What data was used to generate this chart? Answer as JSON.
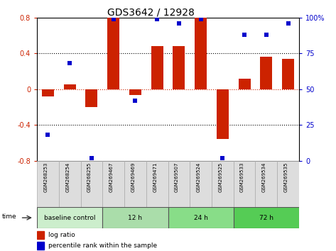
{
  "title": "GDS3642 / 12928",
  "samples": [
    "GSM268253",
    "GSM268254",
    "GSM268255",
    "GSM269467",
    "GSM269469",
    "GSM269471",
    "GSM269507",
    "GSM269524",
    "GSM269525",
    "GSM269533",
    "GSM269534",
    "GSM269535"
  ],
  "log_ratio": [
    -0.08,
    0.05,
    -0.2,
    0.8,
    -0.07,
    0.48,
    0.48,
    0.8,
    -0.56,
    0.12,
    0.36,
    0.34
  ],
  "percentile_rank": [
    18,
    68,
    2,
    99,
    42,
    99,
    96,
    99,
    2,
    88,
    88,
    96
  ],
  "groups": [
    {
      "label": "baseline control",
      "start": 0,
      "end": 3,
      "color": "#cceecc"
    },
    {
      "label": "12 h",
      "start": 3,
      "end": 6,
      "color": "#aaddaa"
    },
    {
      "label": "24 h",
      "start": 6,
      "end": 9,
      "color": "#88dd88"
    },
    {
      "label": "72 h",
      "start": 9,
      "end": 12,
      "color": "#55cc55"
    }
  ],
  "bar_color": "#cc2200",
  "dot_color": "#0000cc",
  "ylim": [
    -0.8,
    0.8
  ],
  "y2lim": [
    0,
    100
  ],
  "yticks": [
    -0.8,
    -0.4,
    0.0,
    0.4,
    0.8
  ],
  "y2ticks": [
    0,
    25,
    50,
    75,
    100
  ],
  "dotted_lines": [
    -0.4,
    0.4
  ],
  "zero_line": 0.0,
  "bg_color": "#ffffff",
  "plot_border_color": "#000000",
  "sample_box_color": "#dddddd",
  "sample_box_edge": "#aaaaaa"
}
